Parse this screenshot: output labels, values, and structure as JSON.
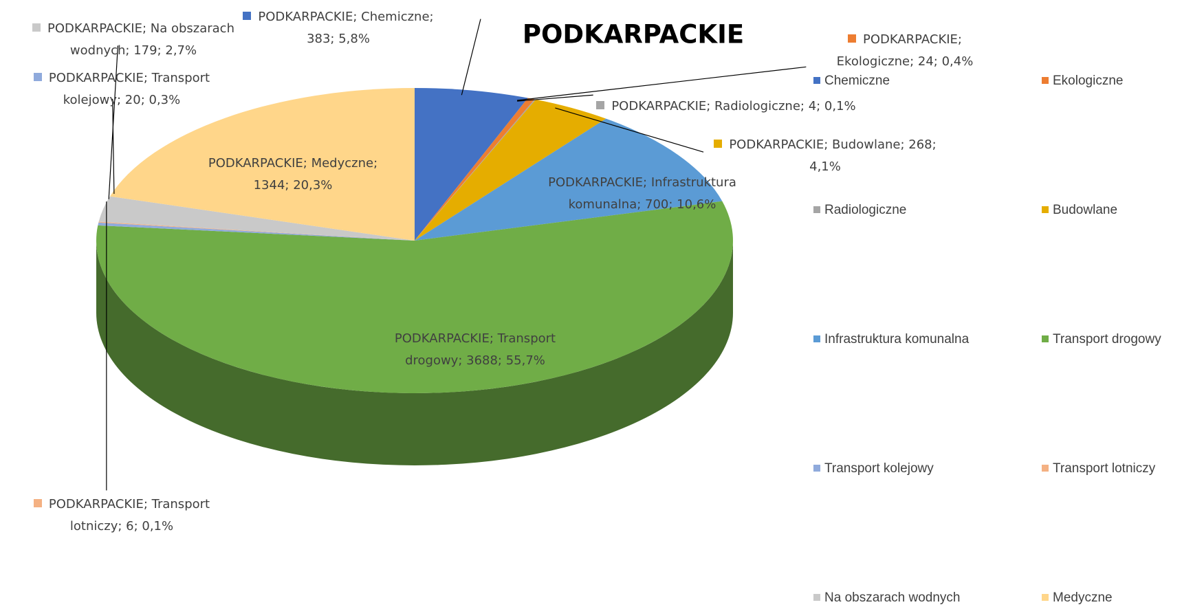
{
  "chart_data": {
    "type": "pie3d",
    "title": "PODKARPACKIE",
    "series_name": "PODKARPACKIE",
    "categories": [
      "Chemiczne",
      "Ekologiczne",
      "Radiologiczne",
      "Budowlane",
      "Infrastruktura komunalna",
      "Transport drogowy",
      "Transport kolejowy",
      "Transport lotniczy",
      "Na obszarach wodnych",
      "Medyczne"
    ],
    "values": [
      383,
      24,
      4,
      268,
      700,
      3688,
      20,
      6,
      179,
      1344
    ],
    "value_labels": [
      "PODKARPACKIE; Chemiczne; 383; 5,8%",
      "PODKARPACKIE; Ekologiczne; 24; 0,4%",
      "PODKARPACKIE; Radiologiczne; 4; 0,1%",
      "PODKARPACKIE; Budowlane; 268; 4,1%",
      "PODKARPACKIE; Infrastruktura komunalna; 700; 10,6%",
      "PODKARPACKIE; Transport drogowy; 3688; 55,7%",
      "PODKARPACKIE; Transport kolejowy; 20; 0,3%",
      "PODKARPACKIE; Transport lotniczy; 6; 0,1%",
      "PODKARPACKIE; Na obszarach wodnych; 179; 2,7%",
      "PODKARPACKIE; Medyczne; 1344; 20,3%"
    ],
    "colors": [
      "#4472c4",
      "#ed7d31",
      "#a5a5a5",
      "#e5ad00",
      "#5b9bd5",
      "#70ad47",
      "#8faadc",
      "#f4b183",
      "#c9c9c9",
      "#ffd68a"
    ],
    "legend": "right"
  }
}
